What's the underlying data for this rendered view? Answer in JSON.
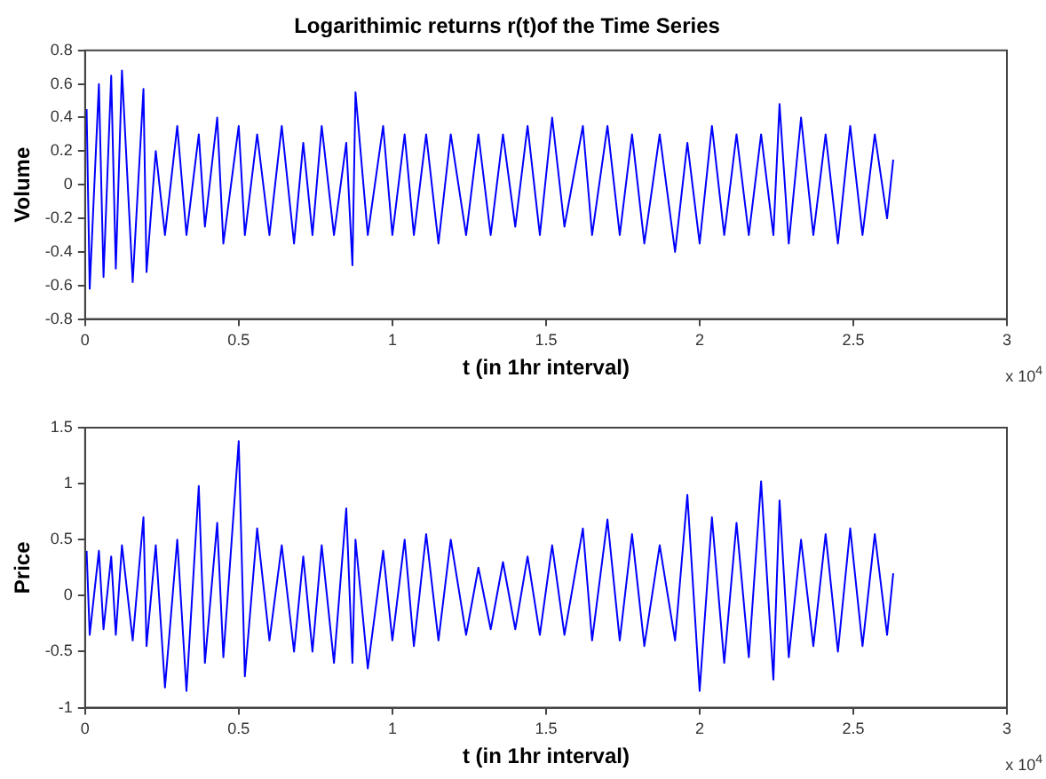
{
  "chart_data": [
    {
      "type": "line",
      "title": "Logarithimic returns r(t)of the Time Series",
      "xlabel": "t (in 1hr interval)",
      "ylabel": "Volume",
      "annotations": [
        "x 10$^{4}$"
      ],
      "xlim": [
        0,
        3
      ],
      "xticks": [
        0,
        0.5,
        1,
        1.5,
        2,
        2.5,
        3
      ],
      "ylim": [
        -0.8,
        0.8
      ],
      "yticks": [
        -0.8,
        -0.6,
        -0.4,
        -0.2,
        0,
        0.2,
        0.4,
        0.6,
        0.8
      ],
      "grid": false,
      "legend": false,
      "marker": "none",
      "line_style": "solid",
      "x": [
        0.005,
        0.015,
        0.045,
        0.06,
        0.085,
        0.1,
        0.12,
        0.155,
        0.19,
        0.2,
        0.23,
        0.26,
        0.3,
        0.33,
        0.37,
        0.39,
        0.43,
        0.45,
        0.5,
        0.52,
        0.56,
        0.6,
        0.64,
        0.68,
        0.71,
        0.74,
        0.77,
        0.81,
        0.85,
        0.87,
        0.88,
        0.92,
        0.97,
        1,
        1.04,
        1.07,
        1.11,
        1.15,
        1.19,
        1.24,
        1.28,
        1.32,
        1.36,
        1.4,
        1.44,
        1.48,
        1.52,
        1.56,
        1.62,
        1.65,
        1.7,
        1.74,
        1.78,
        1.82,
        1.87,
        1.92,
        1.96,
        2,
        2.04,
        2.08,
        2.12,
        2.16,
        2.2,
        2.24,
        2.26,
        2.29,
        2.33,
        2.37,
        2.41,
        2.45,
        2.49,
        2.53,
        2.57,
        2.61,
        2.63
      ],
      "series": [
        {
          "color": "#0000ff",
          "values": [
            0.45,
            -0.62,
            0.6,
            -0.55,
            0.65,
            -0.5,
            0.68,
            -0.58,
            0.57,
            -0.52,
            0.2,
            -0.3,
            0.35,
            -0.3,
            0.3,
            -0.25,
            0.4,
            -0.35,
            0.35,
            -0.3,
            0.3,
            -0.3,
            0.35,
            -0.35,
            0.25,
            -0.3,
            0.35,
            -0.3,
            0.25,
            -0.48,
            0.55,
            -0.3,
            0.35,
            -0.3,
            0.3,
            -0.3,
            0.3,
            -0.35,
            0.3,
            -0.3,
            0.3,
            -0.3,
            0.3,
            -0.25,
            0.35,
            -0.3,
            0.4,
            -0.25,
            0.35,
            -0.3,
            0.35,
            -0.3,
            0.3,
            -0.35,
            0.3,
            -0.4,
            0.25,
            -0.35,
            0.35,
            -0.3,
            0.3,
            -0.3,
            0.3,
            -0.3,
            0.48,
            -0.35,
            0.4,
            -0.3,
            0.3,
            -0.35,
            0.35,
            -0.3,
            0.3,
            -0.2,
            0.15
          ]
        }
      ]
    },
    {
      "type": "line",
      "xlabel": "t (in 1hr interval)",
      "ylabel": "Price",
      "annotations": [
        "x 10$^{4}$"
      ],
      "xlim": [
        0,
        3
      ],
      "xticks": [
        0,
        0.5,
        1,
        1.5,
        2,
        2.5,
        3
      ],
      "ylim": [
        -1,
        1.5
      ],
      "yticks": [
        -1,
        -0.5,
        0,
        0.5,
        1,
        1.5
      ],
      "grid": false,
      "legend": false,
      "marker": "none",
      "line_style": "solid",
      "x": [
        0.005,
        0.015,
        0.045,
        0.06,
        0.085,
        0.1,
        0.12,
        0.155,
        0.19,
        0.2,
        0.23,
        0.26,
        0.3,
        0.33,
        0.37,
        0.39,
        0.43,
        0.45,
        0.5,
        0.52,
        0.56,
        0.6,
        0.64,
        0.68,
        0.71,
        0.74,
        0.77,
        0.81,
        0.85,
        0.87,
        0.88,
        0.92,
        0.97,
        1,
        1.04,
        1.07,
        1.11,
        1.15,
        1.19,
        1.24,
        1.28,
        1.32,
        1.36,
        1.4,
        1.44,
        1.48,
        1.52,
        1.56,
        1.62,
        1.65,
        1.7,
        1.74,
        1.78,
        1.82,
        1.87,
        1.92,
        1.96,
        2,
        2.04,
        2.08,
        2.12,
        2.16,
        2.2,
        2.24,
        2.26,
        2.29,
        2.33,
        2.37,
        2.41,
        2.45,
        2.49,
        2.53,
        2.57,
        2.61,
        2.63
      ],
      "series": [
        {
          "color": "#0000ff",
          "values": [
            0.4,
            -0.35,
            0.4,
            -0.3,
            0.35,
            -0.35,
            0.45,
            -0.4,
            0.7,
            -0.45,
            0.45,
            -0.82,
            0.5,
            -0.85,
            0.98,
            -0.6,
            0.65,
            -0.55,
            1.38,
            -0.72,
            0.6,
            -0.4,
            0.45,
            -0.5,
            0.35,
            -0.5,
            0.45,
            -0.6,
            0.78,
            -0.6,
            0.5,
            -0.65,
            0.4,
            -0.4,
            0.5,
            -0.45,
            0.55,
            -0.4,
            0.5,
            -0.35,
            0.25,
            -0.3,
            0.3,
            -0.3,
            0.35,
            -0.35,
            0.45,
            -0.35,
            0.6,
            -0.4,
            0.68,
            -0.4,
            0.55,
            -0.45,
            0.45,
            -0.4,
            0.9,
            -0.85,
            0.7,
            -0.6,
            0.65,
            -0.55,
            1.02,
            -0.75,
            0.85,
            -0.55,
            0.5,
            -0.45,
            0.55,
            -0.5,
            0.6,
            -0.45,
            0.55,
            -0.35,
            0.2
          ]
        }
      ]
    }
  ]
}
